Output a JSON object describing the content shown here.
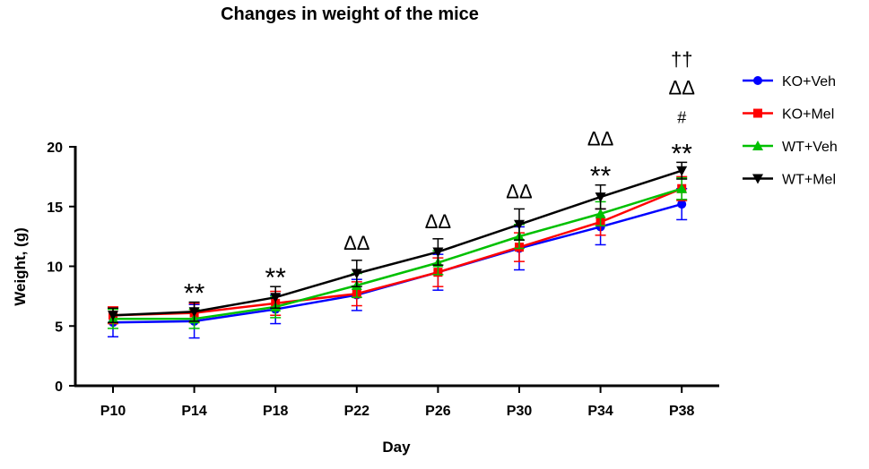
{
  "chart_data": {
    "type": "line",
    "title": "Changes in weight of the mice",
    "xlabel": "Day",
    "ylabel": "Weight, (g)",
    "categories": [
      "P10",
      "P14",
      "P18",
      "P22",
      "P26",
      "P30",
      "P34",
      "P38"
    ],
    "ylim": [
      0,
      20
    ],
    "yticks": [
      0,
      5,
      10,
      15,
      20
    ],
    "grid": false,
    "legend_position": "right",
    "series": [
      {
        "name": "KO+Veh",
        "color": "#0000ff",
        "marker": "circle",
        "values": [
          5.3,
          5.4,
          6.4,
          7.6,
          9.5,
          11.5,
          13.3,
          15.2
        ],
        "error": [
          1.2,
          1.4,
          1.2,
          1.3,
          1.5,
          1.8,
          1.5,
          1.3
        ]
      },
      {
        "name": "KO+Mel",
        "color": "#ff0000",
        "marker": "square",
        "values": [
          5.9,
          6.1,
          6.9,
          7.7,
          9.5,
          11.6,
          13.7,
          16.5
        ],
        "error": [
          0.7,
          0.8,
          1.0,
          1.0,
          1.2,
          1.2,
          1.1,
          1.0
        ]
      },
      {
        "name": "WT+Veh",
        "color": "#00c000",
        "marker": "triangle-up",
        "values": [
          5.6,
          5.6,
          6.6,
          8.4,
          10.3,
          12.5,
          14.4,
          16.5
        ],
        "error": [
          0.8,
          0.8,
          0.9,
          1.0,
          1.0,
          1.0,
          1.0,
          0.9
        ]
      },
      {
        "name": "WT+Mel",
        "color": "#000000",
        "marker": "triangle-down",
        "values": [
          5.9,
          6.2,
          7.4,
          9.4,
          11.2,
          13.5,
          15.8,
          18.0
        ],
        "error": [
          0.6,
          0.8,
          0.9,
          1.1,
          1.1,
          1.3,
          1.0,
          0.7
        ]
      }
    ],
    "annotations": [
      {
        "category": "P14",
        "labels": [
          "**"
        ]
      },
      {
        "category": "P18",
        "labels": [
          "**"
        ]
      },
      {
        "category": "P22",
        "labels": [
          "ΔΔ"
        ]
      },
      {
        "category": "P26",
        "labels": [
          "ΔΔ"
        ]
      },
      {
        "category": "P30",
        "labels": [
          "ΔΔ"
        ]
      },
      {
        "category": "P34",
        "labels": [
          "**",
          "ΔΔ"
        ]
      },
      {
        "category": "P38",
        "labels": [
          "**",
          "#",
          "ΔΔ",
          "††"
        ]
      }
    ]
  }
}
